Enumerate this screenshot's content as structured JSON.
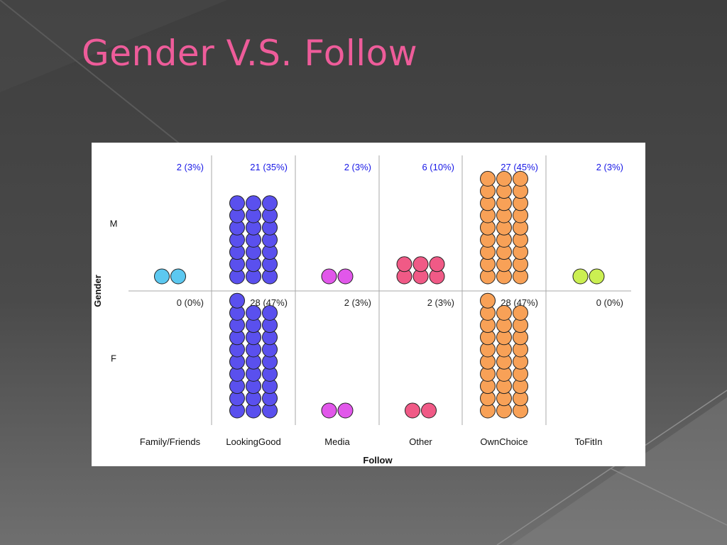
{
  "slide": {
    "title": "Gender V.S. Follow"
  },
  "colors": {
    "background": "#454545",
    "title": "#ee5c9a",
    "label_blue": "#1818e6",
    "label_dark": "#222222"
  },
  "chart_data": {
    "type": "dot-matrix",
    "xlabel": "Follow",
    "ylabel": "Gender",
    "categories": [
      "Family/Friends",
      "LookingGood",
      "Media",
      "Other",
      "OwnChoice",
      "ToFitIn"
    ],
    "category_colors": [
      "#5cc8f0",
      "#5a50ee",
      "#e157ea",
      "#f05a86",
      "#f8a157",
      "#cbef52"
    ],
    "rows": [
      {
        "name": "M",
        "counts": [
          2,
          21,
          2,
          6,
          27,
          2
        ],
        "labels": [
          "2 (3%)",
          "21 (35%)",
          "2 (3%)",
          "6 (10%)",
          "27 (45%)",
          "2 (3%)"
        ],
        "label_color": "blue"
      },
      {
        "name": "F",
        "counts": [
          0,
          28,
          2,
          2,
          28,
          0
        ],
        "labels": [
          "0 (0%)",
          "28 (47%)",
          "2 (3%)",
          "2 (3%)",
          "28 (47%)",
          "0 (0%)"
        ],
        "label_color": "dark"
      }
    ],
    "grid": true,
    "legend": "none"
  }
}
